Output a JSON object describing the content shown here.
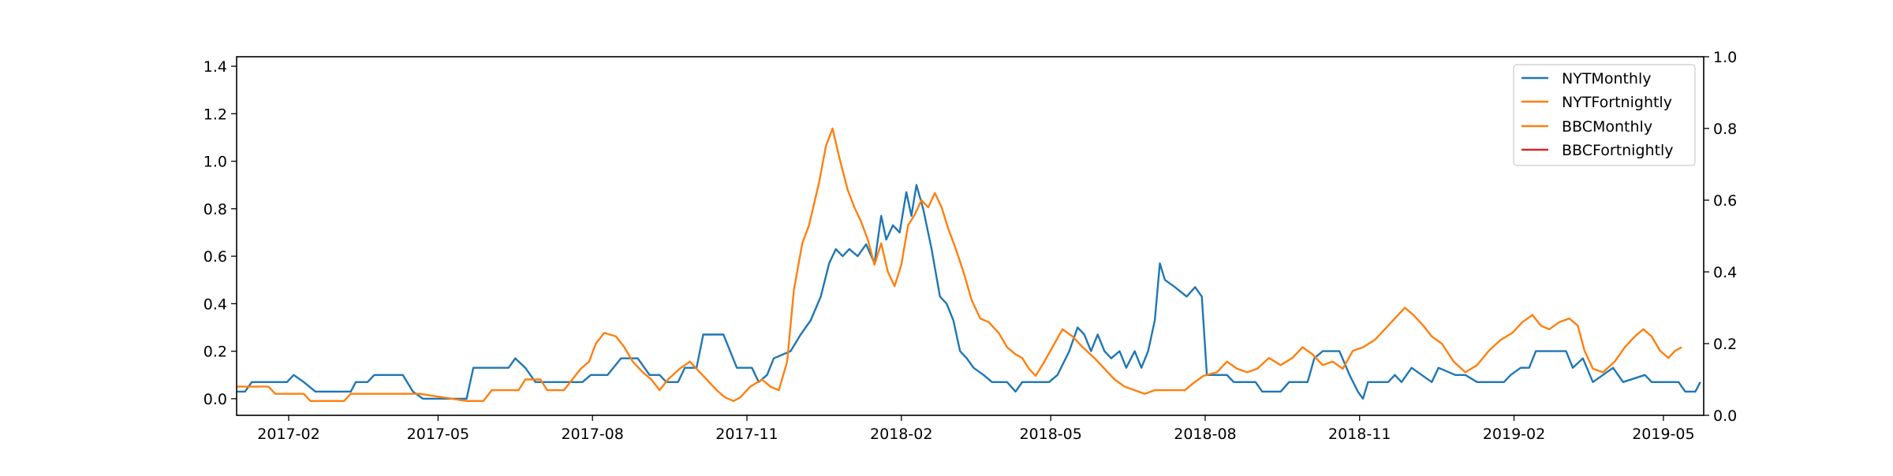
{
  "chart_data": {
    "type": "line",
    "title": "",
    "xlabel": "",
    "ylabel": "",
    "y_left_lim": [
      -0.07,
      1.44
    ],
    "y_right_lim": [
      0.0,
      1.0
    ],
    "x_range": [
      "2017-01-01",
      "2019-05-25"
    ],
    "x_ticks": [
      "2017-02",
      "2017-05",
      "2017-08",
      "2017-11",
      "2018-02",
      "2018-05",
      "2018-08",
      "2018-11",
      "2019-02",
      "2019-05"
    ],
    "y_left_ticks": [
      "0.0",
      "0.2",
      "0.4",
      "0.6",
      "0.8",
      "1.0",
      "1.2",
      "1.4"
    ],
    "y_right_ticks": [
      "0.0",
      "0.2",
      "0.4",
      "0.6",
      "0.8",
      "1.0"
    ],
    "legend_position": "top-right",
    "grid": false,
    "series": [
      {
        "name": "NYTMonthly",
        "color": "#1f77b4",
        "axis": "left",
        "points": [
          [
            "2017-01-01",
            0.03
          ],
          [
            "2017-01-06",
            0.03
          ],
          [
            "2017-01-10",
            0.07
          ],
          [
            "2017-01-31",
            0.07
          ],
          [
            "2017-02-04",
            0.1
          ],
          [
            "2017-02-10",
            0.07
          ],
          [
            "2017-02-17",
            0.03
          ],
          [
            "2017-03-10",
            0.03
          ],
          [
            "2017-03-13",
            0.07
          ],
          [
            "2017-03-20",
            0.07
          ],
          [
            "2017-03-24",
            0.1
          ],
          [
            "2017-04-10",
            0.1
          ],
          [
            "2017-04-16",
            0.03
          ],
          [
            "2017-04-22",
            0.0
          ],
          [
            "2017-05-18",
            0.0
          ],
          [
            "2017-05-22",
            0.13
          ],
          [
            "2017-06-12",
            0.13
          ],
          [
            "2017-06-16",
            0.17
          ],
          [
            "2017-06-22",
            0.13
          ],
          [
            "2017-06-28",
            0.07
          ],
          [
            "2017-07-20",
            0.07
          ],
          [
            "2017-07-26",
            0.07
          ],
          [
            "2017-07-31",
            0.1
          ],
          [
            "2017-08-10",
            0.1
          ],
          [
            "2017-08-18",
            0.17
          ],
          [
            "2017-08-28",
            0.17
          ],
          [
            "2017-09-04",
            0.1
          ],
          [
            "2017-09-10",
            0.1
          ],
          [
            "2017-09-14",
            0.07
          ],
          [
            "2017-09-21",
            0.07
          ],
          [
            "2017-09-25",
            0.13
          ],
          [
            "2017-10-02",
            0.13
          ],
          [
            "2017-10-06",
            0.27
          ],
          [
            "2017-10-18",
            0.27
          ],
          [
            "2017-10-22",
            0.2
          ],
          [
            "2017-10-26",
            0.13
          ],
          [
            "2017-11-04",
            0.13
          ],
          [
            "2017-11-08",
            0.07
          ],
          [
            "2017-11-13",
            0.1
          ],
          [
            "2017-11-17",
            0.17
          ],
          [
            "2017-11-27",
            0.2
          ],
          [
            "2017-12-03",
            0.27
          ],
          [
            "2017-12-09",
            0.33
          ],
          [
            "2017-12-15",
            0.43
          ],
          [
            "2017-12-20",
            0.57
          ],
          [
            "2017-12-24",
            0.63
          ],
          [
            "2017-12-28",
            0.6
          ],
          [
            "2018-01-01",
            0.63
          ],
          [
            "2018-01-06",
            0.6
          ],
          [
            "2018-01-11",
            0.65
          ],
          [
            "2018-01-16",
            0.57
          ],
          [
            "2018-01-20",
            0.77
          ],
          [
            "2018-01-23",
            0.67
          ],
          [
            "2018-01-27",
            0.73
          ],
          [
            "2018-01-31",
            0.7
          ],
          [
            "2018-02-04",
            0.87
          ],
          [
            "2018-02-07",
            0.77
          ],
          [
            "2018-02-10",
            0.9
          ],
          [
            "2018-02-14",
            0.8
          ],
          [
            "2018-02-19",
            0.63
          ],
          [
            "2018-02-24",
            0.43
          ],
          [
            "2018-02-28",
            0.4
          ],
          [
            "2018-03-04",
            0.33
          ],
          [
            "2018-03-08",
            0.2
          ],
          [
            "2018-03-12",
            0.17
          ],
          [
            "2018-03-16",
            0.13
          ],
          [
            "2018-03-22",
            0.1
          ],
          [
            "2018-03-27",
            0.07
          ],
          [
            "2018-04-05",
            0.07
          ],
          [
            "2018-04-10",
            0.03
          ],
          [
            "2018-04-14",
            0.07
          ],
          [
            "2018-04-30",
            0.07
          ],
          [
            "2018-05-05",
            0.1
          ],
          [
            "2018-05-12",
            0.2
          ],
          [
            "2018-05-17",
            0.3
          ],
          [
            "2018-05-21",
            0.27
          ],
          [
            "2018-05-25",
            0.2
          ],
          [
            "2018-05-29",
            0.27
          ],
          [
            "2018-06-02",
            0.2
          ],
          [
            "2018-06-06",
            0.17
          ],
          [
            "2018-06-11",
            0.2
          ],
          [
            "2018-06-15",
            0.13
          ],
          [
            "2018-06-20",
            0.2
          ],
          [
            "2018-06-24",
            0.13
          ],
          [
            "2018-06-28",
            0.2
          ],
          [
            "2018-07-02",
            0.33
          ],
          [
            "2018-07-05",
            0.57
          ],
          [
            "2018-07-08",
            0.5
          ],
          [
            "2018-07-14",
            0.47
          ],
          [
            "2018-07-21",
            0.43
          ],
          [
            "2018-07-26",
            0.47
          ],
          [
            "2018-07-30",
            0.43
          ],
          [
            "2018-08-02",
            0.1
          ],
          [
            "2018-08-14",
            0.1
          ],
          [
            "2018-08-18",
            0.07
          ],
          [
            "2018-08-31",
            0.07
          ],
          [
            "2018-09-04",
            0.03
          ],
          [
            "2018-09-15",
            0.03
          ],
          [
            "2018-09-20",
            0.07
          ],
          [
            "2018-10-01",
            0.07
          ],
          [
            "2018-10-05",
            0.17
          ],
          [
            "2018-10-10",
            0.2
          ],
          [
            "2018-10-20",
            0.2
          ],
          [
            "2018-10-26",
            0.1
          ],
          [
            "2018-10-31",
            0.03
          ],
          [
            "2018-11-03",
            0.0
          ],
          [
            "2018-11-06",
            0.07
          ],
          [
            "2018-11-18",
            0.07
          ],
          [
            "2018-11-22",
            0.1
          ],
          [
            "2018-11-26",
            0.07
          ],
          [
            "2018-12-02",
            0.13
          ],
          [
            "2018-12-08",
            0.1
          ],
          [
            "2018-12-14",
            0.07
          ],
          [
            "2018-12-18",
            0.13
          ],
          [
            "2018-12-28",
            0.1
          ],
          [
            "2019-01-03",
            0.1
          ],
          [
            "2019-01-10",
            0.07
          ],
          [
            "2019-01-26",
            0.07
          ],
          [
            "2019-01-30",
            0.1
          ],
          [
            "2019-02-05",
            0.13
          ],
          [
            "2019-02-10",
            0.13
          ],
          [
            "2019-02-14",
            0.2
          ],
          [
            "2019-03-04",
            0.2
          ],
          [
            "2019-03-08",
            0.13
          ],
          [
            "2019-03-14",
            0.17
          ],
          [
            "2019-03-20",
            0.07
          ],
          [
            "2019-03-26",
            0.1
          ],
          [
            "2019-04-01",
            0.13
          ],
          [
            "2019-04-07",
            0.07
          ],
          [
            "2019-04-20",
            0.1
          ],
          [
            "2019-04-24",
            0.07
          ],
          [
            "2019-05-10",
            0.07
          ],
          [
            "2019-05-14",
            0.03
          ],
          [
            "2019-05-20",
            0.03
          ],
          [
            "2019-05-23",
            0.07
          ]
        ]
      },
      {
        "name": "NYTFortnightly",
        "color": "#ff7f0e",
        "axis": "right",
        "points": [
          [
            "2017-01-01",
            0.08
          ],
          [
            "2017-01-20",
            0.08
          ],
          [
            "2017-01-24",
            0.06
          ],
          [
            "2017-02-10",
            0.06
          ],
          [
            "2017-02-14",
            0.04
          ],
          [
            "2017-03-06",
            0.04
          ],
          [
            "2017-03-10",
            0.06
          ],
          [
            "2017-04-20",
            0.06
          ],
          [
            "2017-05-18",
            0.04
          ],
          [
            "2017-05-28",
            0.04
          ],
          [
            "2017-06-02",
            0.07
          ],
          [
            "2017-06-18",
            0.07
          ],
          [
            "2017-06-22",
            0.1
          ],
          [
            "2017-07-01",
            0.1
          ],
          [
            "2017-07-05",
            0.07
          ],
          [
            "2017-07-15",
            0.07
          ],
          [
            "2017-07-20",
            0.1
          ],
          [
            "2017-07-25",
            0.13
          ],
          [
            "2017-07-30",
            0.15
          ],
          [
            "2017-08-03",
            0.2
          ],
          [
            "2017-08-08",
            0.23
          ],
          [
            "2017-08-15",
            0.22
          ],
          [
            "2017-08-20",
            0.19
          ],
          [
            "2017-08-25",
            0.15
          ],
          [
            "2017-08-31",
            0.12
          ],
          [
            "2017-09-05",
            0.1
          ],
          [
            "2017-09-10",
            0.07
          ],
          [
            "2017-09-15",
            0.1
          ],
          [
            "2017-09-22",
            0.13
          ],
          [
            "2017-09-28",
            0.15
          ],
          [
            "2017-10-02",
            0.13
          ],
          [
            "2017-10-08",
            0.1
          ],
          [
            "2017-10-14",
            0.07
          ],
          [
            "2017-10-19",
            0.05
          ],
          [
            "2017-10-24",
            0.04
          ],
          [
            "2017-10-28",
            0.05
          ],
          [
            "2017-11-03",
            0.08
          ],
          [
            "2017-11-10",
            0.1
          ],
          [
            "2017-11-15",
            0.08
          ],
          [
            "2017-11-20",
            0.07
          ],
          [
            "2017-11-25",
            0.15
          ],
          [
            "2017-11-29",
            0.35
          ],
          [
            "2017-12-04",
            0.48
          ],
          [
            "2017-12-08",
            0.53
          ],
          [
            "2017-12-14",
            0.65
          ],
          [
            "2017-12-18",
            0.75
          ],
          [
            "2017-12-22",
            0.8
          ],
          [
            "2017-12-26",
            0.72
          ],
          [
            "2017-12-31",
            0.63
          ],
          [
            "2018-01-04",
            0.58
          ],
          [
            "2018-01-08",
            0.54
          ],
          [
            "2018-01-12",
            0.49
          ],
          [
            "2018-01-16",
            0.42
          ],
          [
            "2018-01-20",
            0.48
          ],
          [
            "2018-01-24",
            0.4
          ],
          [
            "2018-01-28",
            0.36
          ],
          [
            "2018-02-01",
            0.42
          ],
          [
            "2018-02-05",
            0.53
          ],
          [
            "2018-02-09",
            0.56
          ],
          [
            "2018-02-13",
            0.6
          ],
          [
            "2018-02-17",
            0.58
          ],
          [
            "2018-02-21",
            0.62
          ],
          [
            "2018-02-25",
            0.58
          ],
          [
            "2018-03-01",
            0.52
          ],
          [
            "2018-03-05",
            0.47
          ],
          [
            "2018-03-10",
            0.4
          ],
          [
            "2018-03-15",
            0.32
          ],
          [
            "2018-03-20",
            0.27
          ],
          [
            "2018-03-25",
            0.26
          ],
          [
            "2018-03-31",
            0.23
          ],
          [
            "2018-04-05",
            0.19
          ],
          [
            "2018-04-10",
            0.17
          ],
          [
            "2018-04-14",
            0.16
          ],
          [
            "2018-04-18",
            0.13
          ],
          [
            "2018-04-22",
            0.11
          ],
          [
            "2018-04-26",
            0.14
          ],
          [
            "2018-05-02",
            0.19
          ],
          [
            "2018-05-08",
            0.24
          ],
          [
            "2018-05-14",
            0.22
          ],
          [
            "2018-05-20",
            0.19
          ],
          [
            "2018-05-27",
            0.16
          ],
          [
            "2018-06-02",
            0.13
          ],
          [
            "2018-06-08",
            0.1
          ],
          [
            "2018-06-14",
            0.08
          ],
          [
            "2018-06-20",
            0.07
          ],
          [
            "2018-06-26",
            0.06
          ],
          [
            "2018-07-02",
            0.07
          ],
          [
            "2018-07-10",
            0.07
          ],
          [
            "2018-07-20",
            0.07
          ],
          [
            "2018-07-25",
            0.09
          ],
          [
            "2018-07-31",
            0.11
          ],
          [
            "2018-08-08",
            0.12
          ],
          [
            "2018-08-14",
            0.15
          ],
          [
            "2018-08-20",
            0.13
          ],
          [
            "2018-08-26",
            0.12
          ],
          [
            "2018-09-01",
            0.13
          ],
          [
            "2018-09-08",
            0.16
          ],
          [
            "2018-09-15",
            0.14
          ],
          [
            "2018-09-22",
            0.16
          ],
          [
            "2018-09-28",
            0.19
          ],
          [
            "2018-10-04",
            0.17
          ],
          [
            "2018-10-10",
            0.14
          ],
          [
            "2018-10-16",
            0.15
          ],
          [
            "2018-10-22",
            0.13
          ],
          [
            "2018-10-28",
            0.18
          ],
          [
            "2018-11-03",
            0.19
          ],
          [
            "2018-11-10",
            0.21
          ],
          [
            "2018-11-16",
            0.24
          ],
          [
            "2018-11-22",
            0.27
          ],
          [
            "2018-11-28",
            0.3
          ],
          [
            "2018-12-03",
            0.28
          ],
          [
            "2018-12-09",
            0.25
          ],
          [
            "2018-12-14",
            0.22
          ],
          [
            "2018-12-20",
            0.2
          ],
          [
            "2018-12-27",
            0.15
          ],
          [
            "2019-01-03",
            0.12
          ],
          [
            "2019-01-10",
            0.14
          ],
          [
            "2019-01-17",
            0.18
          ],
          [
            "2019-01-24",
            0.21
          ],
          [
            "2019-01-31",
            0.23
          ],
          [
            "2019-02-06",
            0.26
          ],
          [
            "2019-02-12",
            0.28
          ],
          [
            "2019-02-17",
            0.25
          ],
          [
            "2019-02-22",
            0.24
          ],
          [
            "2019-02-28",
            0.26
          ],
          [
            "2019-03-06",
            0.27
          ],
          [
            "2019-03-11",
            0.25
          ],
          [
            "2019-03-15",
            0.18
          ],
          [
            "2019-03-20",
            0.13
          ],
          [
            "2019-03-26",
            0.12
          ],
          [
            "2019-04-02",
            0.15
          ],
          [
            "2019-04-08",
            0.19
          ],
          [
            "2019-04-14",
            0.22
          ],
          [
            "2019-04-19",
            0.24
          ],
          [
            "2019-04-24",
            0.22
          ],
          [
            "2019-04-29",
            0.18
          ],
          [
            "2019-05-04",
            0.16
          ],
          [
            "2019-05-08",
            0.18
          ],
          [
            "2019-05-12",
            0.19
          ]
        ]
      },
      {
        "name": "BBCMonthly",
        "color": "#ff7f0e",
        "axis": "right",
        "points": []
      },
      {
        "name": "BBCFortnightly",
        "color": "#d62728",
        "axis": "right",
        "points": []
      }
    ]
  }
}
